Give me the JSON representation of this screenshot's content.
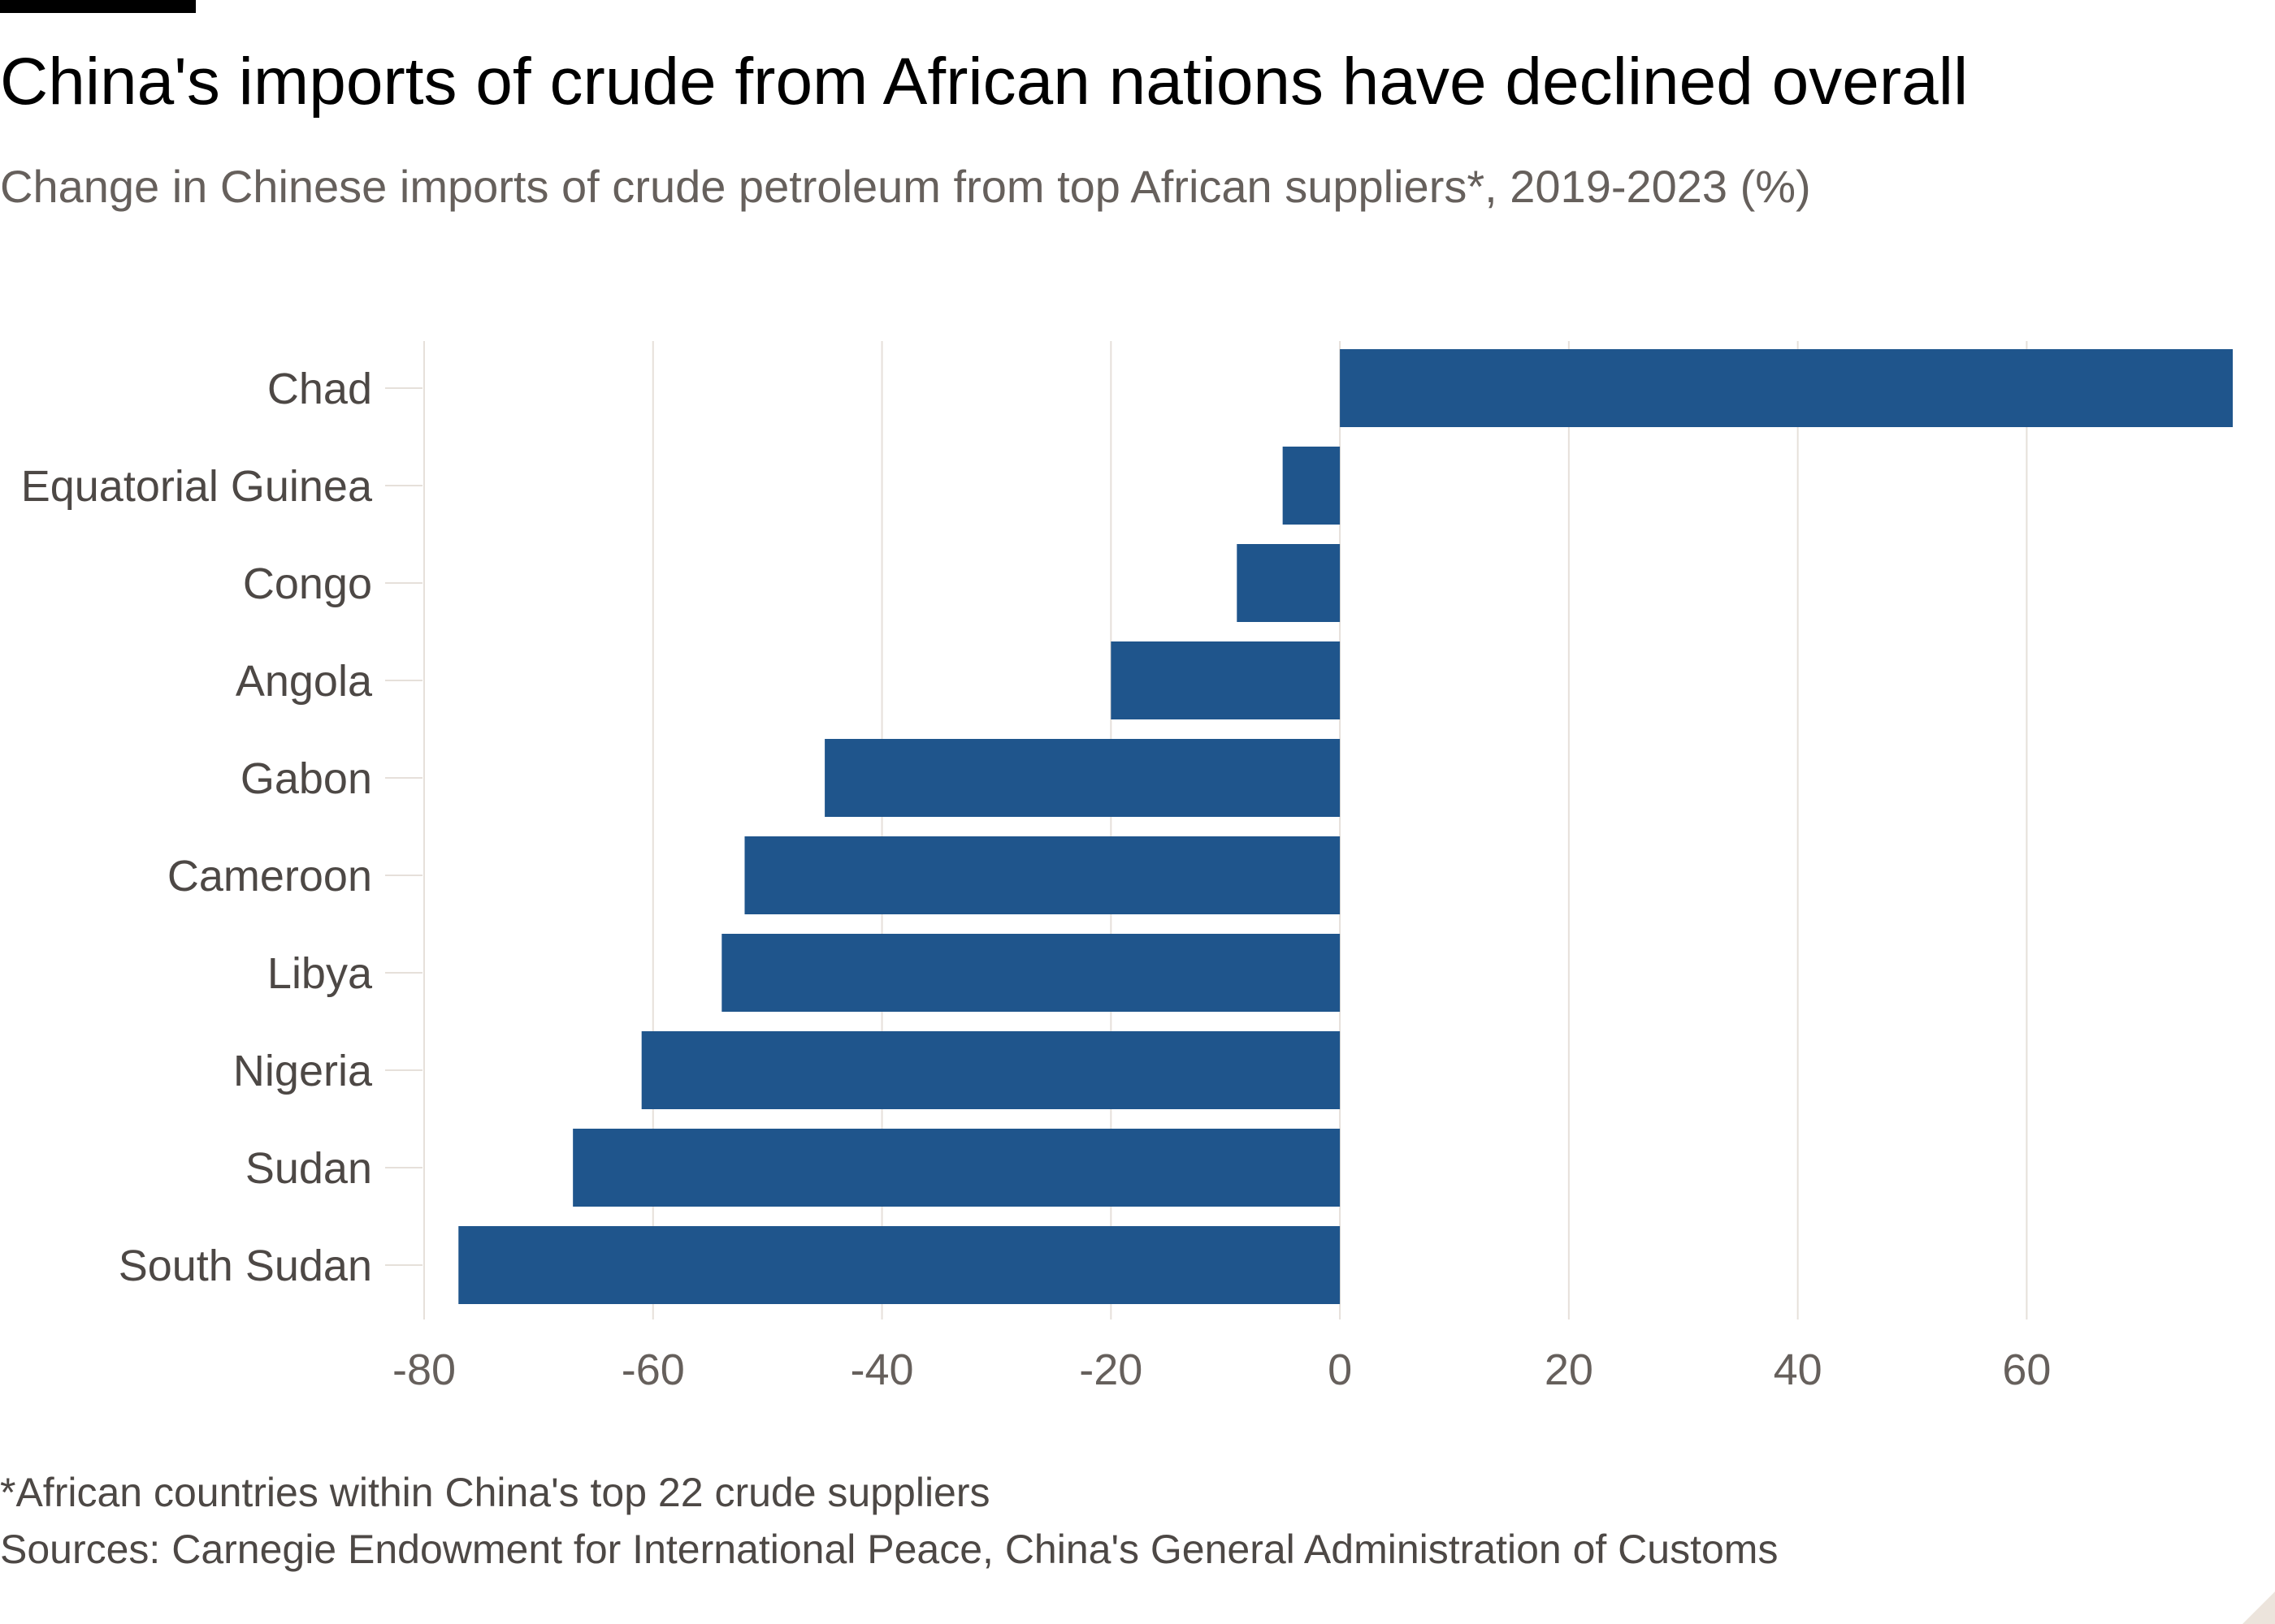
{
  "title": "China's imports of crude from African nations have declined overall",
  "subtitle": "Change in Chinese imports of crude petroleum from top African suppliers*, 2019-2023 (%)",
  "footnote": "*African countries within China's top 22 crude suppliers",
  "source": "Sources: Carnegie Endowment for International Peace, China's General Administration of Customs",
  "colors": {
    "bar": "#1f558c",
    "grid": "#e6e0da",
    "axis_text": "#66605c",
    "label_text": "#4d4845"
  },
  "chart_data": {
    "type": "bar",
    "orientation": "horizontal",
    "title": "China's imports of crude from African nations have declined overall",
    "subtitle": "Change in Chinese imports of crude petroleum from top African suppliers*, 2019-2023 (%)",
    "categories": [
      "Chad",
      "Equatorial Guinea",
      "Congo",
      "Angola",
      "Gabon",
      "Cameroon",
      "Libya",
      "Nigeria",
      "Sudan",
      "South Sudan"
    ],
    "values": [
      78,
      -5,
      -9,
      -20,
      -45,
      -52,
      -54,
      -61,
      -67,
      -77
    ],
    "xlim": [
      -80,
      78
    ],
    "xticks": [
      -80,
      -60,
      -40,
      -20,
      0,
      20,
      40,
      60
    ],
    "xtick_labels": [
      "-80",
      "-60",
      "-40",
      "-20",
      "0",
      "20",
      "40",
      "60"
    ],
    "xlabel": "",
    "ylabel": "",
    "grid": true
  }
}
